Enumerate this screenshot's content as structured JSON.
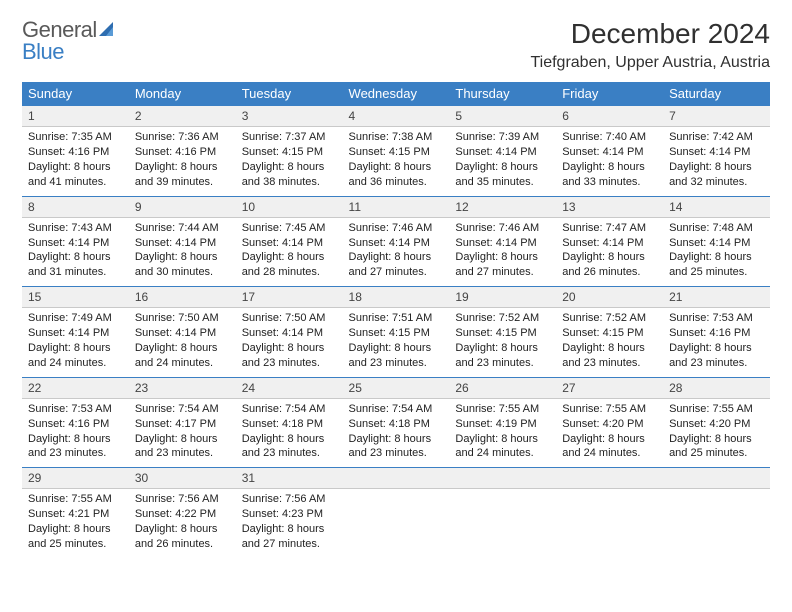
{
  "logo": {
    "general": "General",
    "blue": "Blue"
  },
  "title": "December 2024",
  "location": "Tiefgraben, Upper Austria, Austria",
  "colors": {
    "header_bg": "#3a7fc4",
    "header_text": "#ffffff",
    "daynum_bg": "#f0f0f0",
    "daynum_border_top": "#3a7fc4",
    "daynum_border_bottom": "#c9c9c9",
    "page_bg": "#ffffff",
    "body_text": "#222222",
    "logo_gray": "#595959"
  },
  "fonts": {
    "title_pt": 28,
    "location_pt": 16,
    "th_pt": 13,
    "daynum_pt": 12,
    "cell_pt": 11
  },
  "weekdays": [
    "Sunday",
    "Monday",
    "Tuesday",
    "Wednesday",
    "Thursday",
    "Friday",
    "Saturday"
  ],
  "weeks": [
    [
      {
        "n": "1",
        "sr": "Sunrise: 7:35 AM",
        "ss": "Sunset: 4:16 PM",
        "d1": "Daylight: 8 hours",
        "d2": "and 41 minutes."
      },
      {
        "n": "2",
        "sr": "Sunrise: 7:36 AM",
        "ss": "Sunset: 4:16 PM",
        "d1": "Daylight: 8 hours",
        "d2": "and 39 minutes."
      },
      {
        "n": "3",
        "sr": "Sunrise: 7:37 AM",
        "ss": "Sunset: 4:15 PM",
        "d1": "Daylight: 8 hours",
        "d2": "and 38 minutes."
      },
      {
        "n": "4",
        "sr": "Sunrise: 7:38 AM",
        "ss": "Sunset: 4:15 PM",
        "d1": "Daylight: 8 hours",
        "d2": "and 36 minutes."
      },
      {
        "n": "5",
        "sr": "Sunrise: 7:39 AM",
        "ss": "Sunset: 4:14 PM",
        "d1": "Daylight: 8 hours",
        "d2": "and 35 minutes."
      },
      {
        "n": "6",
        "sr": "Sunrise: 7:40 AM",
        "ss": "Sunset: 4:14 PM",
        "d1": "Daylight: 8 hours",
        "d2": "and 33 minutes."
      },
      {
        "n": "7",
        "sr": "Sunrise: 7:42 AM",
        "ss": "Sunset: 4:14 PM",
        "d1": "Daylight: 8 hours",
        "d2": "and 32 minutes."
      }
    ],
    [
      {
        "n": "8",
        "sr": "Sunrise: 7:43 AM",
        "ss": "Sunset: 4:14 PM",
        "d1": "Daylight: 8 hours",
        "d2": "and 31 minutes."
      },
      {
        "n": "9",
        "sr": "Sunrise: 7:44 AM",
        "ss": "Sunset: 4:14 PM",
        "d1": "Daylight: 8 hours",
        "d2": "and 30 minutes."
      },
      {
        "n": "10",
        "sr": "Sunrise: 7:45 AM",
        "ss": "Sunset: 4:14 PM",
        "d1": "Daylight: 8 hours",
        "d2": "and 28 minutes."
      },
      {
        "n": "11",
        "sr": "Sunrise: 7:46 AM",
        "ss": "Sunset: 4:14 PM",
        "d1": "Daylight: 8 hours",
        "d2": "and 27 minutes."
      },
      {
        "n": "12",
        "sr": "Sunrise: 7:46 AM",
        "ss": "Sunset: 4:14 PM",
        "d1": "Daylight: 8 hours",
        "d2": "and 27 minutes."
      },
      {
        "n": "13",
        "sr": "Sunrise: 7:47 AM",
        "ss": "Sunset: 4:14 PM",
        "d1": "Daylight: 8 hours",
        "d2": "and 26 minutes."
      },
      {
        "n": "14",
        "sr": "Sunrise: 7:48 AM",
        "ss": "Sunset: 4:14 PM",
        "d1": "Daylight: 8 hours",
        "d2": "and 25 minutes."
      }
    ],
    [
      {
        "n": "15",
        "sr": "Sunrise: 7:49 AM",
        "ss": "Sunset: 4:14 PM",
        "d1": "Daylight: 8 hours",
        "d2": "and 24 minutes."
      },
      {
        "n": "16",
        "sr": "Sunrise: 7:50 AM",
        "ss": "Sunset: 4:14 PM",
        "d1": "Daylight: 8 hours",
        "d2": "and 24 minutes."
      },
      {
        "n": "17",
        "sr": "Sunrise: 7:50 AM",
        "ss": "Sunset: 4:14 PM",
        "d1": "Daylight: 8 hours",
        "d2": "and 23 minutes."
      },
      {
        "n": "18",
        "sr": "Sunrise: 7:51 AM",
        "ss": "Sunset: 4:15 PM",
        "d1": "Daylight: 8 hours",
        "d2": "and 23 minutes."
      },
      {
        "n": "19",
        "sr": "Sunrise: 7:52 AM",
        "ss": "Sunset: 4:15 PM",
        "d1": "Daylight: 8 hours",
        "d2": "and 23 minutes."
      },
      {
        "n": "20",
        "sr": "Sunrise: 7:52 AM",
        "ss": "Sunset: 4:15 PM",
        "d1": "Daylight: 8 hours",
        "d2": "and 23 minutes."
      },
      {
        "n": "21",
        "sr": "Sunrise: 7:53 AM",
        "ss": "Sunset: 4:16 PM",
        "d1": "Daylight: 8 hours",
        "d2": "and 23 minutes."
      }
    ],
    [
      {
        "n": "22",
        "sr": "Sunrise: 7:53 AM",
        "ss": "Sunset: 4:16 PM",
        "d1": "Daylight: 8 hours",
        "d2": "and 23 minutes."
      },
      {
        "n": "23",
        "sr": "Sunrise: 7:54 AM",
        "ss": "Sunset: 4:17 PM",
        "d1": "Daylight: 8 hours",
        "d2": "and 23 minutes."
      },
      {
        "n": "24",
        "sr": "Sunrise: 7:54 AM",
        "ss": "Sunset: 4:18 PM",
        "d1": "Daylight: 8 hours",
        "d2": "and 23 minutes."
      },
      {
        "n": "25",
        "sr": "Sunrise: 7:54 AM",
        "ss": "Sunset: 4:18 PM",
        "d1": "Daylight: 8 hours",
        "d2": "and 23 minutes."
      },
      {
        "n": "26",
        "sr": "Sunrise: 7:55 AM",
        "ss": "Sunset: 4:19 PM",
        "d1": "Daylight: 8 hours",
        "d2": "and 24 minutes."
      },
      {
        "n": "27",
        "sr": "Sunrise: 7:55 AM",
        "ss": "Sunset: 4:20 PM",
        "d1": "Daylight: 8 hours",
        "d2": "and 24 minutes."
      },
      {
        "n": "28",
        "sr": "Sunrise: 7:55 AM",
        "ss": "Sunset: 4:20 PM",
        "d1": "Daylight: 8 hours",
        "d2": "and 25 minutes."
      }
    ],
    [
      {
        "n": "29",
        "sr": "Sunrise: 7:55 AM",
        "ss": "Sunset: 4:21 PM",
        "d1": "Daylight: 8 hours",
        "d2": "and 25 minutes."
      },
      {
        "n": "30",
        "sr": "Sunrise: 7:56 AM",
        "ss": "Sunset: 4:22 PM",
        "d1": "Daylight: 8 hours",
        "d2": "and 26 minutes."
      },
      {
        "n": "31",
        "sr": "Sunrise: 7:56 AM",
        "ss": "Sunset: 4:23 PM",
        "d1": "Daylight: 8 hours",
        "d2": "and 27 minutes."
      },
      null,
      null,
      null,
      null
    ]
  ]
}
